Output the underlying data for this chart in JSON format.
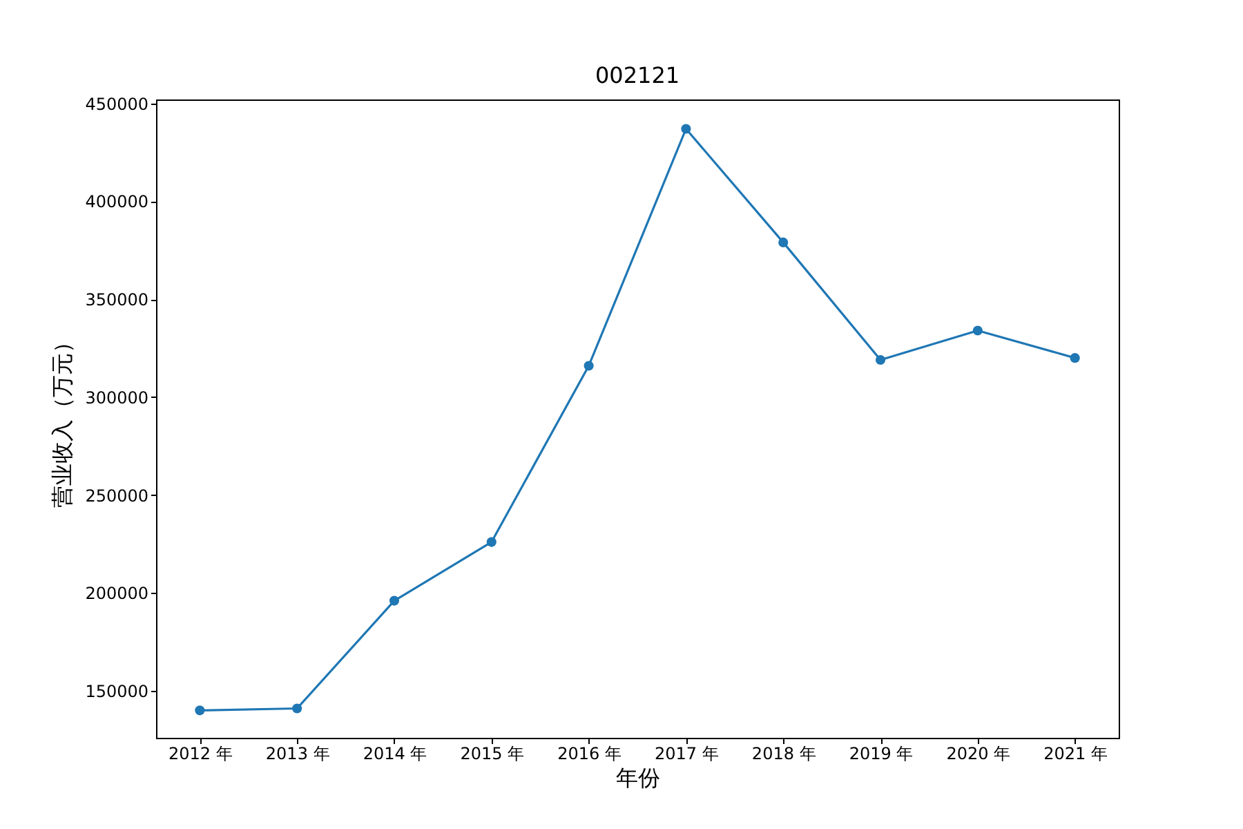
{
  "chart_data": {
    "type": "line",
    "title": "002121",
    "xlabel": "年份",
    "ylabel": "营业收入（万元）",
    "categories": [
      "2012 年",
      "2013 年",
      "2014 年",
      "2015 年",
      "2016 年",
      "2017 年",
      "2018 年",
      "2019 年",
      "2020 年",
      "2021 年"
    ],
    "series": [
      {
        "color": "#1f77b4",
        "values": [
          140000,
          141000,
          196000,
          226000,
          316000,
          437000,
          379000,
          319000,
          334000,
          320000
        ]
      }
    ],
    "ylim": [
      126000,
      452000
    ],
    "yticks": [
      150000,
      200000,
      250000,
      300000,
      350000,
      400000,
      450000
    ],
    "marker": "circle",
    "line_style": "solid",
    "grid": false,
    "legend": false
  }
}
